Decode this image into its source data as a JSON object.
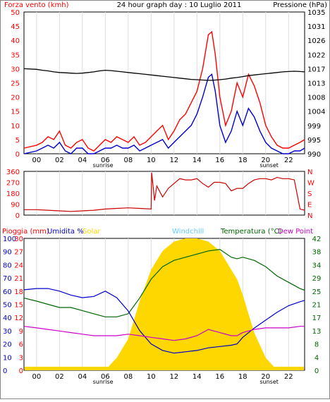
{
  "chart_data": [
    {
      "type": "line",
      "panel": "wind_pressure",
      "title": "24 hour graph day : 10 Luglio 2011",
      "left_axis_label": "Forza vento (kmh)",
      "right_axis_label": "Pressione (hPa)",
      "x_ticks": [
        "00",
        "02",
        "04",
        "06",
        "08",
        "10",
        "12",
        "14",
        "16",
        "18",
        "20",
        "22"
      ],
      "sunrise_label": "sunrise",
      "sunset_label": "sunset",
      "y_left_ticks": [
        "0",
        "5",
        "10",
        "15",
        "20",
        "25",
        "30",
        "35",
        "40",
        "45",
        "50"
      ],
      "y_right_ticks": [
        "990",
        "995",
        "999",
        "1004",
        "1008",
        "1013",
        "1017",
        "1022",
        "1026",
        "1031",
        "1035"
      ],
      "ylim_left": [
        0,
        50
      ],
      "ylim_right": [
        990,
        1035
      ],
      "x_hours": [
        -1.1,
        0,
        0.5,
        1,
        1.5,
        2,
        2.5,
        3,
        3.5,
        4,
        4.5,
        5,
        5.5,
        6,
        6.5,
        7,
        7.5,
        8,
        8.5,
        9,
        9.5,
        10,
        10.5,
        11,
        11.5,
        12,
        12.5,
        13,
        13.5,
        14,
        14.5,
        15,
        15.3,
        15.6,
        16,
        16.5,
        17,
        17.5,
        18,
        18.5,
        19,
        19.5,
        20,
        20.5,
        21,
        21.5,
        22,
        22.5,
        23,
        23.4
      ],
      "series": [
        {
          "name": "Forza vento (kmh)",
          "color": "#ff0000",
          "values": [
            2,
            3,
            4,
            6,
            5,
            8,
            3,
            2,
            4,
            5,
            2,
            1,
            3,
            5,
            4,
            6,
            5,
            4,
            6,
            3,
            4,
            6,
            8,
            10,
            5,
            8,
            12,
            14,
            18,
            22,
            30,
            42,
            43,
            35,
            20,
            10,
            15,
            25,
            20,
            28,
            24,
            18,
            10,
            6,
            3,
            2,
            2,
            3,
            4,
            5
          ]
        },
        {
          "name": "Raffica",
          "color": "#0000cc",
          "values": [
            0,
            1,
            2,
            3,
            2,
            4,
            1,
            0,
            2,
            2,
            0,
            0,
            1,
            2,
            2,
            3,
            2,
            2,
            3,
            1,
            2,
            3,
            4,
            5,
            2,
            4,
            6,
            8,
            10,
            14,
            20,
            27,
            28,
            22,
            10,
            4,
            8,
            15,
            10,
            16,
            13,
            8,
            4,
            2,
            1,
            0,
            0,
            1,
            1,
            2
          ]
        },
        {
          "name": "Pressione (hPa)",
          "axis": "right",
          "color": "#000000",
          "values": [
            1017,
            1016.8,
            1016.5,
            1016.3,
            1016,
            1015.8,
            1015.7,
            1015.6,
            1015.5,
            1015.6,
            1015.8,
            1016,
            1016.3,
            1016.5,
            1016.4,
            1016.2,
            1016,
            1015.8,
            1015.6,
            1015.4,
            1015.2,
            1015,
            1014.8,
            1014.6,
            1014.4,
            1014.2,
            1014,
            1013.8,
            1013.6,
            1013.5,
            1013.4,
            1013.3,
            1013.3,
            1013.4,
            1013.5,
            1013.7,
            1014,
            1014.2,
            1014.5,
            1014.8,
            1015,
            1015.2,
            1015.4,
            1015.6,
            1015.8,
            1016,
            1016.1,
            1016.2,
            1016.1,
            1016
          ]
        }
      ]
    },
    {
      "type": "line",
      "panel": "wind_direction",
      "y_left_ticks": [
        "0",
        "90",
        "180",
        "270",
        "360"
      ],
      "y_right_ticks": [
        "N",
        "E",
        "S",
        "W",
        "N"
      ],
      "ylim": [
        0,
        360
      ],
      "x_hours": [
        -1.1,
        0,
        1,
        2,
        3,
        4,
        5,
        6,
        7,
        8,
        9,
        10,
        10.05,
        10.3,
        10.5,
        11,
        11.5,
        12,
        12.5,
        13,
        13.5,
        14,
        14.5,
        15,
        15.5,
        16,
        16.5,
        17,
        17.5,
        18,
        18.5,
        19,
        19.5,
        20,
        20.5,
        21,
        21.5,
        22,
        22.5,
        23,
        23.4
      ],
      "series": [
        {
          "name": "Direzione vento",
          "color": "#cc0000",
          "values": [
            45,
            45,
            40,
            35,
            30,
            35,
            40,
            50,
            55,
            60,
            55,
            50,
            350,
            120,
            240,
            150,
            220,
            260,
            300,
            290,
            290,
            300,
            260,
            230,
            270,
            270,
            260,
            200,
            220,
            220,
            260,
            290,
            300,
            300,
            290,
            310,
            300,
            300,
            290,
            50,
            40
          ]
        }
      ]
    },
    {
      "type": "line",
      "panel": "rain_humidity_temperature",
      "legend": [
        {
          "label": "Pioggia (mm)",
          "color": "#ff0000"
        },
        {
          "label": "Umidita %",
          "color": "#0000cc"
        },
        {
          "label": "Solar",
          "color": "#ffd700"
        },
        {
          "label": "Windchill",
          "color": "#66ccff"
        },
        {
          "label": "Temperatura (°C)",
          "color": "#006600"
        },
        {
          "label": "Dew Point",
          "color": "#cc00cc"
        }
      ],
      "y_humidity_ticks": [
        "0",
        "10",
        "20",
        "30",
        "40",
        "50",
        "60",
        "70",
        "80",
        "90",
        "100"
      ],
      "y_rain_ticks": [
        "0",
        "3",
        "6",
        "9",
        "12",
        "15",
        "18",
        "21",
        "24",
        "27",
        "30"
      ],
      "y_temp_ticks": [
        "0",
        "4",
        "8",
        "13",
        "17",
        "21",
        "25",
        "29",
        "34",
        "38",
        "42"
      ],
      "ylim_humidity": [
        0,
        100
      ],
      "ylim_temp": [
        0,
        42
      ],
      "x_hours": [
        -1.1,
        0,
        1,
        2,
        3,
        4,
        5,
        6,
        7,
        8,
        9,
        10,
        11,
        12,
        13,
        14,
        15,
        16,
        17,
        17.5,
        18,
        19,
        20,
        21,
        22,
        23,
        23.4
      ],
      "series": [
        {
          "name": "Temperatura (°C)",
          "color": "#006600",
          "values": [
            23,
            22,
            21,
            20,
            20,
            19,
            18,
            17,
            17,
            18,
            23,
            29,
            33,
            35,
            36,
            37,
            38,
            38.5,
            36,
            35.5,
            36,
            35,
            33,
            30,
            28,
            26,
            25.5
          ]
        },
        {
          "name": "Umidita %",
          "color": "#0000cc",
          "values": [
            61,
            62,
            62,
            60,
            57,
            55,
            56,
            60,
            55,
            45,
            30,
            20,
            15,
            13,
            14,
            15,
            17,
            18,
            19,
            20,
            25,
            32,
            38,
            44,
            49,
            52,
            53
          ]
        },
        {
          "name": "Dew Point",
          "color": "#cc00cc",
          "values": [
            14,
            13.5,
            13,
            12.5,
            12,
            11.5,
            11,
            11,
            11,
            11.5,
            11,
            10.5,
            10,
            9.5,
            10,
            11,
            13,
            12,
            11,
            11,
            12,
            13,
            13.5,
            13.5,
            13.5,
            14,
            14
          ]
        },
        {
          "name": "Solar",
          "color": "#ffd700",
          "values": [
            0,
            0,
            0,
            0,
            0,
            0,
            0,
            0,
            4,
            10,
            22,
            32,
            38,
            41,
            42,
            42,
            41,
            38,
            32,
            29,
            24,
            12,
            4,
            0,
            0,
            0,
            0
          ]
        },
        {
          "name": "Pioggia (mm)",
          "color": "#ff0000",
          "values": [
            0,
            0,
            0,
            0,
            0,
            0,
            0,
            0,
            0,
            0,
            0,
            0,
            0,
            0,
            0,
            0,
            0,
            0,
            0,
            0,
            0,
            0,
            0,
            0,
            0,
            0,
            0
          ]
        }
      ]
    }
  ]
}
